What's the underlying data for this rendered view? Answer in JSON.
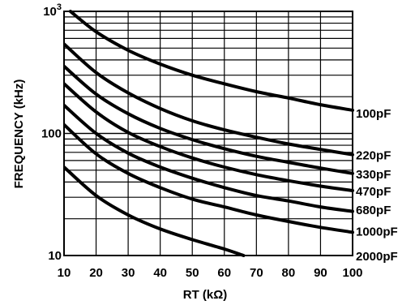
{
  "chart_data": {
    "type": "line",
    "xlabel": "RT (kΩ)",
    "ylabel": "FREQUENCY (kHz)",
    "x_scale": "linear",
    "y_scale": "log",
    "xlim": [
      10,
      100
    ],
    "ylim": [
      10,
      1000
    ],
    "grid": true,
    "x_ticks": [
      "10",
      "20",
      "30",
      "40",
      "50",
      "60",
      "70",
      "80",
      "90",
      "100"
    ],
    "y_ticks": [
      {
        "value": 10,
        "label": "10",
        "sup": ""
      },
      {
        "value": 100,
        "label": "100",
        "sup": ""
      },
      {
        "value": 1000,
        "label": "10",
        "sup": "3"
      }
    ],
    "series": [
      {
        "name": "100pF",
        "x": [
          12,
          20,
          30,
          40,
          50,
          60,
          70,
          80,
          90,
          100
        ],
        "y": [
          1000,
          680,
          480,
          370,
          300,
          255,
          220,
          195,
          172,
          155
        ]
      },
      {
        "name": "220pF",
        "x": [
          10,
          20,
          30,
          40,
          50,
          60,
          70,
          80,
          90,
          100
        ],
        "y": [
          540,
          315,
          215,
          160,
          127,
          107,
          93,
          82,
          74,
          67
        ]
      },
      {
        "name": "330pF",
        "x": [
          10,
          20,
          30,
          40,
          50,
          60,
          70,
          80,
          90,
          100
        ],
        "y": [
          355,
          210,
          145,
          110,
          89,
          75,
          65,
          58,
          52,
          47
        ]
      },
      {
        "name": "470pF",
        "x": [
          10,
          20,
          30,
          40,
          50,
          60,
          70,
          80,
          90,
          100
        ],
        "y": [
          255,
          150,
          102,
          78,
          63,
          53,
          46,
          41,
          37,
          34
        ]
      },
      {
        "name": "680pF",
        "x": [
          10,
          20,
          30,
          40,
          50,
          60,
          70,
          80,
          90,
          100
        ],
        "y": [
          170,
          100,
          69,
          53,
          43,
          36,
          31,
          28,
          25,
          23
        ]
      },
      {
        "name": "1000pF",
        "x": [
          10,
          20,
          30,
          40,
          50,
          60,
          70,
          80,
          90,
          100
        ],
        "y": [
          118,
          68,
          47,
          36,
          29,
          25,
          21.5,
          19,
          17,
          15.5
        ]
      },
      {
        "name": "2000pF",
        "x": [
          10,
          20,
          30,
          40,
          50,
          60,
          66
        ],
        "y": [
          53,
          31,
          21.5,
          16.5,
          13.5,
          11.3,
          10
        ]
      }
    ],
    "label_y": [
      148,
      67,
      47,
      34,
      24,
      16,
      10
    ]
  }
}
